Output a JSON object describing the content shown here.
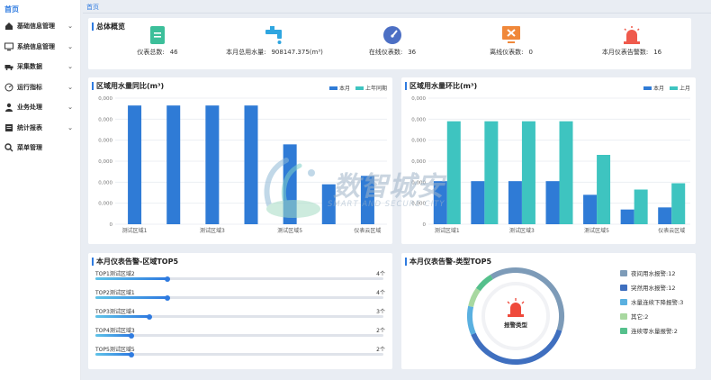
{
  "sidebar": {
    "home": "首页",
    "items": [
      {
        "label": "基础信息管理",
        "icon": "home-icon",
        "chev": "⌄"
      },
      {
        "label": "系统信息管理",
        "icon": "monitor-icon",
        "chev": "⌄"
      },
      {
        "label": "采集数据",
        "icon": "truck-icon",
        "chev": "⌄"
      },
      {
        "label": "运行指标",
        "icon": "gauge-icon",
        "chev": "⌄"
      },
      {
        "label": "业务处理",
        "icon": "user-icon",
        "chev": "⌄"
      },
      {
        "label": "统计报表",
        "icon": "report-icon",
        "chev": "⌄"
      },
      {
        "label": "菜单管理",
        "icon": "search-icon",
        "chev": ""
      }
    ]
  },
  "breadcrumb": "首页",
  "overview": {
    "title": "总体概览",
    "items": [
      {
        "label": "仪表总数:",
        "value": "46",
        "icon": "document-icon",
        "color": "#3cbf9a"
      },
      {
        "label": "本月总用水量:",
        "value": "908147.375(m³)",
        "icon": "faucet-icon",
        "color": "#2fa6e0"
      },
      {
        "label": "在线仪表数:",
        "value": "36",
        "icon": "speedometer-icon",
        "color": "#4c6fc4"
      },
      {
        "label": "离线仪表数:",
        "value": "0",
        "icon": "offline-monitor-icon",
        "color": "#f0883a"
      },
      {
        "label": "本月仪表告警数:",
        "value": "16",
        "icon": "alarm-light-icon",
        "color": "#ef5a4c"
      }
    ]
  },
  "yoy": {
    "title": "区域用水量同比(m³)",
    "legend": [
      "本月",
      "上年同期"
    ],
    "colors": [
      "#2f7bd6",
      "#3ec4c0"
    ]
  },
  "mom": {
    "title": "区域用水量环比(m³)",
    "legend": [
      "本月",
      "上月"
    ],
    "colors": [
      "#2f7bd6",
      "#3ec4c0"
    ]
  },
  "chart_data": [
    {
      "type": "bar",
      "title": "区域用水量同比(m³)",
      "yticks": [
        "0",
        "0,000",
        "0,000",
        "0,000",
        "0,000",
        "0,000",
        "0,000"
      ],
      "ylim": [
        0,
        6
      ],
      "categories": [
        "测试区域1",
        "",
        "测试区域3",
        "",
        "测试区域5",
        "",
        "仪表云区域"
      ],
      "series": [
        {
          "name": "本月",
          "values": [
            5.65,
            5.65,
            5.65,
            5.65,
            3.8,
            1.9,
            2.3
          ]
        },
        {
          "name": "上年同期",
          "values": [
            0,
            0,
            0,
            0,
            0,
            0,
            0
          ]
        }
      ],
      "legend_position": "top-right",
      "grid": true
    },
    {
      "type": "bar",
      "title": "区域用水量环比(m³)",
      "yticks": [
        "0",
        "0,000",
        "0,000",
        "0,000",
        "0,000",
        "0,000",
        "0,000"
      ],
      "ylim": [
        0,
        6
      ],
      "categories": [
        "测试区域1",
        "",
        "测试区域3",
        "",
        "测试区域5",
        "",
        "仪表云区域"
      ],
      "series": [
        {
          "name": "本月",
          "values": [
            2.05,
            2.05,
            2.05,
            2.05,
            1.4,
            0.7,
            0.8
          ]
        },
        {
          "name": "上月",
          "values": [
            4.9,
            4.9,
            4.9,
            4.9,
            3.3,
            1.65,
            1.95
          ]
        }
      ],
      "legend_position": "top-right",
      "grid": true
    },
    {
      "type": "pie",
      "title": "本月仪表告警-类型TOP5",
      "center_label": "报警类型",
      "slices": [
        {
          "name": "夜间用水报警",
          "value": 12,
          "color": "#7d9bb8"
        },
        {
          "name": "突然用水报警",
          "value": 12,
          "color": "#3f6fbf"
        },
        {
          "name": "水量连续下降报警",
          "value": 3,
          "color": "#5ab0e0"
        },
        {
          "name": "其它",
          "value": 2,
          "color": "#a8d8a0"
        },
        {
          "name": "连续零水量报警",
          "value": 2,
          "color": "#55c08c"
        }
      ],
      "legend_text": [
        "夜间用水报警:12",
        "突然用水报警:12",
        "水量连续下降报警:3",
        "其它:2",
        "连续零水量报警:2"
      ]
    }
  ],
  "top5": {
    "title": "本月仪表告警-区域TOP5",
    "rows": [
      {
        "label": "TOP1测试区域2",
        "count": "4个",
        "value": 4
      },
      {
        "label": "TOP2测试区域1",
        "count": "4个",
        "value": 4
      },
      {
        "label": "TOP3测试区域4",
        "count": "3个",
        "value": 3
      },
      {
        "label": "TOP4测试区域3",
        "count": "2个",
        "value": 2
      },
      {
        "label": "TOP5测试区域5",
        "count": "2个",
        "value": 2
      }
    ],
    "max": 16
  },
  "types_title": "本月仪表告警-类型TOP5",
  "watermark": {
    "cn": "数智城安",
    "en": "SMART AND SECURE CITY"
  }
}
